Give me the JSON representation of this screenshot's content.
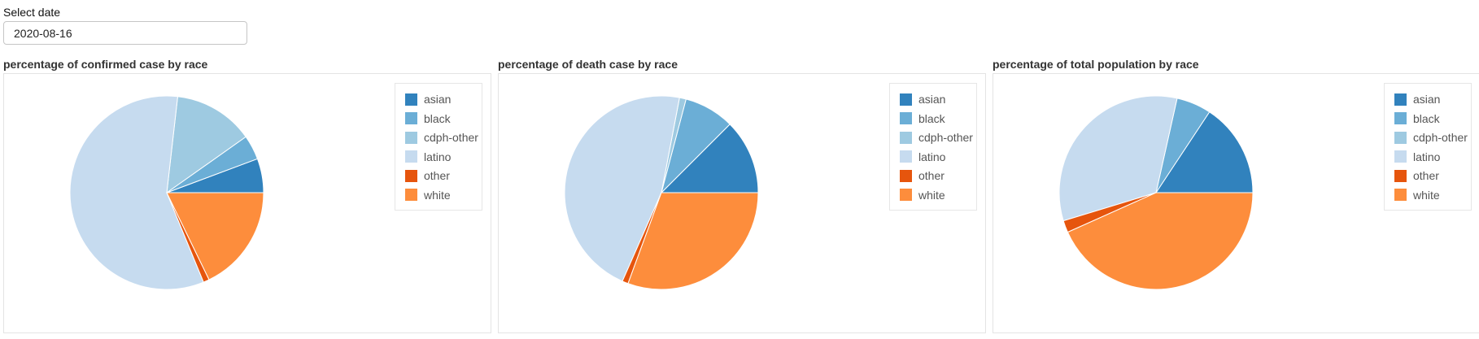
{
  "date_selector": {
    "label": "Select date",
    "value": "2020-08-16"
  },
  "colors": {
    "asian": "#3182bd",
    "black": "#6baed6",
    "cdph-other": "#9ecae1",
    "latino": "#c6dbef",
    "other": "#e6550d",
    "white": "#fd8d3c"
  },
  "chart_data": [
    {
      "type": "pie",
      "title": "percentage of confirmed case by race",
      "labels": [
        "asian",
        "black",
        "cdph-other",
        "latino",
        "other",
        "white"
      ],
      "values": [
        5.7,
        4.1,
        13.4,
        58.0,
        1.0,
        17.8
      ],
      "legend": "top-right"
    },
    {
      "type": "pie",
      "title": "percentage of death case by race",
      "labels": [
        "asian",
        "black",
        "cdph-other",
        "latino",
        "other",
        "white"
      ],
      "values": [
        12.5,
        8.4,
        1.1,
        46.4,
        1.0,
        30.6
      ],
      "legend": "top-right"
    },
    {
      "type": "pie",
      "title": "percentage of total population by race",
      "labels": [
        "asian",
        "black",
        "cdph-other",
        "latino",
        "other",
        "white"
      ],
      "values": [
        15.7,
        5.8,
        0.0,
        33.2,
        2.0,
        43.3
      ],
      "legend": "top-right"
    }
  ]
}
